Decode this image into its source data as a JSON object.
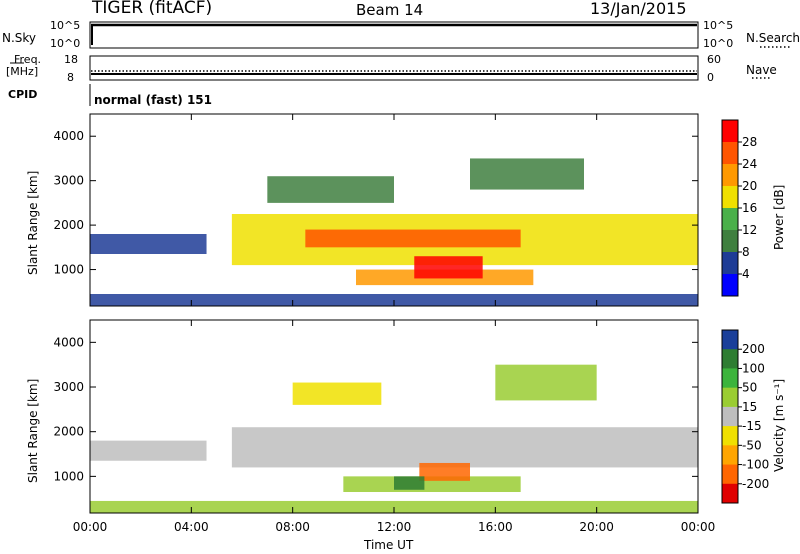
{
  "header": {
    "radar": "TIGER (fitACF)",
    "beam": "Beam 14",
    "date": "13/Jan/2015"
  },
  "aux_panels": {
    "nsky_label": "N.Sky",
    "nsky_ticks": [
      "10^5",
      "10^0"
    ],
    "nsearch_label": "N.Search",
    "nsearch_ticks": [
      "10^5",
      "10^0"
    ],
    "freq_label": "Freq.",
    "freq_unit": "[MHz]",
    "freq_ticks": [
      "18",
      "8"
    ],
    "nave_label": "Nave",
    "nave_ticks": [
      "60",
      "0"
    ],
    "cpid_label": "CPID",
    "cpid_value": "normal (fast) 151"
  },
  "colors": {
    "power_scale": [
      "#0000ff",
      "#1e3c96",
      "#3f7f3f",
      "#4ab04a",
      "#f0e000",
      "#ff9900",
      "#ff5500",
      "#ff0000"
    ],
    "velocity_scale": [
      "#e00000",
      "#ff6600",
      "#ffa500",
      "#f0e000",
      "#bebebe",
      "#9acd32",
      "#3cb43c",
      "#2e7d32",
      "#1a3f9a"
    ],
    "ground_scatter": "#bebebe"
  },
  "chart_data": [
    {
      "type": "heatmap",
      "title": "Power",
      "xlabel": "Time UT",
      "ylabel": "Slant Range [km]",
      "x_ticks": [
        "00:00",
        "04:00",
        "08:00",
        "12:00",
        "16:00",
        "20:00",
        "00:00"
      ],
      "xlim_hours": [
        0,
        24
      ],
      "y_ticks": [
        "4000",
        "3000",
        "2000",
        "1000"
      ],
      "ylim": [
        180,
        4500
      ],
      "colorbar_label": "Power [dB]",
      "colorbar_ticks": [
        "28",
        "24",
        "20",
        "16",
        "12",
        "8",
        "4"
      ],
      "colorbar_range": [
        0,
        32
      ],
      "features": [
        {
          "start_h": 0.0,
          "end_h": 4.6,
          "range_from": 1350,
          "range_to": 1800,
          "level": 6
        },
        {
          "start_h": 5.6,
          "end_h": 24.0,
          "range_from": 1100,
          "range_to": 2250,
          "level": 18
        },
        {
          "start_h": 8.5,
          "end_h": 17.0,
          "range_from": 1500,
          "range_to": 1900,
          "level": 26
        },
        {
          "start_h": 10.5,
          "end_h": 17.5,
          "range_from": 650,
          "range_to": 1000,
          "level": 20
        },
        {
          "start_h": 12.8,
          "end_h": 15.5,
          "range_from": 800,
          "range_to": 1300,
          "level": 28
        },
        {
          "start_h": 7.0,
          "end_h": 12.0,
          "range_from": 2500,
          "range_to": 3100,
          "level": 8
        },
        {
          "start_h": 15.0,
          "end_h": 19.5,
          "range_from": 2800,
          "range_to": 3500,
          "level": 8
        },
        {
          "start_h": 0.0,
          "end_h": 24.0,
          "range_from": 180,
          "range_to": 450,
          "level": 6
        }
      ]
    },
    {
      "type": "heatmap",
      "title": "Velocity",
      "xlabel": "Time UT",
      "ylabel": "Slant Range [km]",
      "x_ticks": [
        "00:00",
        "04:00",
        "08:00",
        "12:00",
        "16:00",
        "20:00",
        "00:00"
      ],
      "xlim_hours": [
        0,
        24
      ],
      "y_ticks": [
        "4000",
        "3000",
        "2000",
        "1000"
      ],
      "ylim": [
        180,
        4500
      ],
      "colorbar_label": "Velocity [m s⁻¹]",
      "colorbar_ticks": [
        "200",
        "100",
        "50",
        "15",
        "-15",
        "-50",
        "-100",
        "-200"
      ],
      "features": [
        {
          "start_h": 0.0,
          "end_h": 4.6,
          "range_from": 1350,
          "range_to": 1800,
          "velocity": 0
        },
        {
          "start_h": 5.6,
          "end_h": 24.0,
          "range_from": 1200,
          "range_to": 2100,
          "velocity": 0
        },
        {
          "start_h": 10.0,
          "end_h": 17.0,
          "range_from": 650,
          "range_to": 1000,
          "velocity": 40
        },
        {
          "start_h": 13.0,
          "end_h": 15.0,
          "range_from": 900,
          "range_to": 1300,
          "velocity": -150
        },
        {
          "start_h": 12.0,
          "end_h": 13.2,
          "range_from": 700,
          "range_to": 1000,
          "velocity": 150
        },
        {
          "start_h": 8.0,
          "end_h": 11.5,
          "range_from": 2600,
          "range_to": 3100,
          "velocity": -40
        },
        {
          "start_h": 16.0,
          "end_h": 20.0,
          "range_from": 2700,
          "range_to": 3500,
          "velocity": 40
        },
        {
          "start_h": 0.0,
          "end_h": 24.0,
          "range_from": 180,
          "range_to": 450,
          "velocity": 30
        }
      ]
    }
  ]
}
